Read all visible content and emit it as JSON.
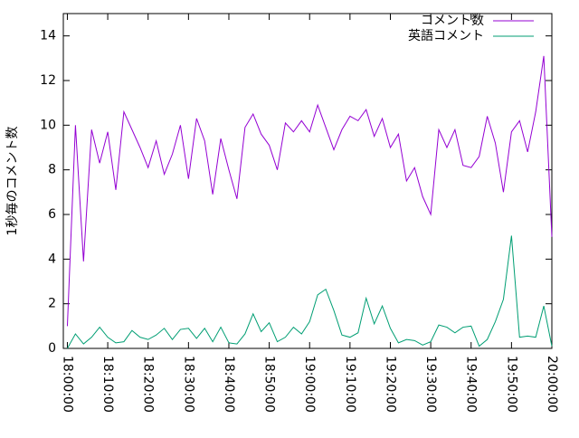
{
  "chart_data": {
    "type": "line",
    "y_label": "1秒毎のコメント数",
    "x": [
      "18:00:00",
      "18:02:00",
      "18:04:00",
      "18:06:00",
      "18:08:00",
      "18:10:00",
      "18:12:00",
      "18:14:00",
      "18:16:00",
      "18:18:00",
      "18:20:00",
      "18:22:00",
      "18:24:00",
      "18:26:00",
      "18:28:00",
      "18:30:00",
      "18:32:00",
      "18:34:00",
      "18:36:00",
      "18:38:00",
      "18:40:00",
      "18:42:00",
      "18:44:00",
      "18:46:00",
      "18:48:00",
      "18:50:00",
      "18:52:00",
      "18:54:00",
      "18:56:00",
      "18:58:00",
      "19:00:00",
      "19:02:00",
      "19:04:00",
      "19:06:00",
      "19:08:00",
      "19:10:00",
      "19:12:00",
      "19:14:00",
      "19:16:00",
      "19:18:00",
      "19:20:00",
      "19:22:00",
      "19:24:00",
      "19:26:00",
      "19:28:00",
      "19:30:00",
      "19:32:00",
      "19:34:00",
      "19:36:00",
      "19:38:00",
      "19:40:00",
      "19:42:00",
      "19:44:00",
      "19:46:00",
      "19:48:00",
      "19:50:00",
      "19:52:00",
      "19:54:00",
      "19:56:00",
      "19:58:00",
      "20:00:00"
    ],
    "series": [
      {
        "name": "コメント数",
        "color": "#9400d3",
        "values": [
          1.0,
          10.0,
          3.9,
          9.8,
          8.3,
          9.7,
          7.1,
          10.6,
          9.8,
          9.0,
          8.1,
          9.3,
          7.8,
          8.7,
          10.0,
          7.6,
          10.3,
          9.3,
          6.9,
          9.4,
          8.0,
          6.7,
          9.9,
          10.5,
          9.6,
          9.1,
          8.0,
          10.1,
          9.7,
          10.2,
          9.7,
          10.9,
          9.9,
          8.9,
          9.8,
          10.4,
          10.2,
          10.7,
          9.5,
          10.3,
          9.0,
          9.6,
          7.5,
          8.1,
          6.8,
          6.0,
          9.8,
          9.0,
          9.8,
          8.2,
          8.1,
          8.6,
          10.4,
          9.2,
          7.0,
          9.7,
          10.2,
          8.8,
          10.6,
          13.1,
          5.0
        ]
      },
      {
        "name": "英語コメント",
        "color": "#009e73",
        "values": [
          0.0,
          0.65,
          0.2,
          0.5,
          0.95,
          0.5,
          0.25,
          0.3,
          0.8,
          0.5,
          0.4,
          0.6,
          0.9,
          0.4,
          0.85,
          0.9,
          0.45,
          0.9,
          0.3,
          0.95,
          0.25,
          0.2,
          0.65,
          1.55,
          0.75,
          1.15,
          0.3,
          0.5,
          0.95,
          0.65,
          1.2,
          2.4,
          2.65,
          1.7,
          0.6,
          0.5,
          0.7,
          2.25,
          1.1,
          1.9,
          0.9,
          0.25,
          0.4,
          0.35,
          0.15,
          0.3,
          1.05,
          0.95,
          0.7,
          0.95,
          1.0,
          0.1,
          0.4,
          1.2,
          2.2,
          5.05,
          0.5,
          0.55,
          0.5,
          1.9,
          0.1
        ]
      }
    ],
    "xlim": [
      "17:59:00",
      "20:00:00"
    ],
    "xticks": [
      "18:00:00",
      "18:10:00",
      "18:20:00",
      "18:30:00",
      "18:40:00",
      "18:50:00",
      "19:00:00",
      "19:10:00",
      "19:20:00",
      "19:30:00",
      "19:40:00",
      "19:50:00",
      "20:00:00"
    ],
    "ylim": [
      0,
      15
    ],
    "yticks": [
      0,
      2,
      4,
      6,
      8,
      10,
      12,
      14
    ],
    "legend": "top-right"
  }
}
